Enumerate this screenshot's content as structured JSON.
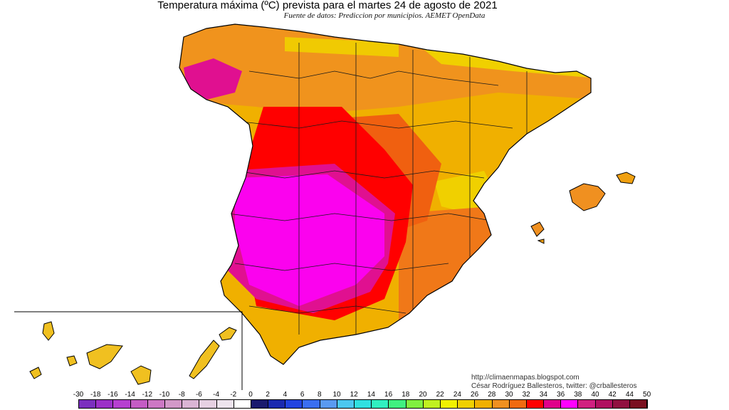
{
  "title": "Temperatura máxima (ºC) prevista para el martes 24 de agosto de 2021",
  "subtitle": "Fuente de datos: Prediccion por municipios. AEMET OpenData",
  "credits": {
    "url": "http://climaenmapas.blogspot.com",
    "author": "César Rodríguez Ballesteros, twitter: @crballesteros"
  },
  "legend": {
    "ticks": [
      "-30",
      "-18",
      "-16",
      "-14",
      "-12",
      "-10",
      "-8",
      "-6",
      "-4",
      "-2",
      "0",
      "2",
      "4",
      "6",
      "8",
      "10",
      "12",
      "14",
      "16",
      "18",
      "20",
      "22",
      "24",
      "26",
      "28",
      "30",
      "32",
      "34",
      "36",
      "38",
      "40",
      "42",
      "44",
      "50"
    ],
    "colors": [
      "#7b2fbf",
      "#9b30c8",
      "#b53fd0",
      "#c45cc4",
      "#cc78c4",
      "#d298c8",
      "#dab4d4",
      "#e6d0e2",
      "#eee4ee",
      "#ffffff",
      "#1a1a6e",
      "#1a2ab0",
      "#2244e0",
      "#3a6ef0",
      "#5a9af0",
      "#4cc8f0",
      "#30e0e0",
      "#30f0c0",
      "#40f080",
      "#80f040",
      "#c0f020",
      "#f0f000",
      "#f0d000",
      "#f0b000",
      "#f09020",
      "#f06a10",
      "#ff0000",
      "#e0008a",
      "#ff00ff",
      "#d02080",
      "#b01060",
      "#901040",
      "#7a1020"
    ]
  },
  "map": {
    "region": "Spain",
    "inset": "Canary Islands",
    "dominant_levels": [
      "34",
      "36",
      "32",
      "30",
      "28",
      "24"
    ]
  }
}
